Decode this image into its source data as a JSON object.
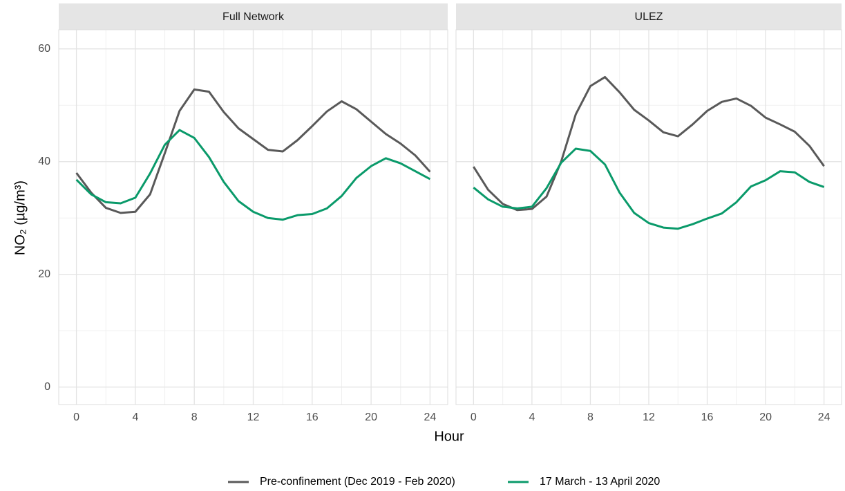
{
  "chart_data": [
    {
      "type": "line",
      "title": "Full Network",
      "x_label": "Hour",
      "y_label": "NO₂ (µg/m³)",
      "x": [
        0,
        1,
        2,
        3,
        4,
        5,
        6,
        7,
        8,
        9,
        10,
        11,
        12,
        13,
        14,
        15,
        16,
        17,
        18,
        19,
        20,
        21,
        22,
        23,
        24
      ],
      "series": [
        {
          "name": "Pre-confinement (Dec 2019 - Feb 2020)",
          "color": "#595959",
          "values": [
            38.0,
            34.5,
            31.8,
            30.9,
            31.1,
            34.2,
            41.5,
            49.0,
            52.8,
            52.4,
            48.8,
            45.9,
            44.0,
            42.1,
            41.8,
            43.8,
            46.3,
            48.9,
            50.7,
            49.3,
            47.1,
            44.9,
            43.2,
            41.1,
            38.2
          ]
        },
        {
          "name": "17 March - 13 April 2020",
          "color": "#0a9a6a",
          "values": [
            36.8,
            34.2,
            32.8,
            32.6,
            33.6,
            37.9,
            43.0,
            45.6,
            44.2,
            40.8,
            36.4,
            33.0,
            31.1,
            30.0,
            29.7,
            30.5,
            30.7,
            31.7,
            33.9,
            37.1,
            39.2,
            40.6,
            39.7,
            38.3,
            36.9
          ]
        }
      ],
      "xlim": [
        -1.2,
        25.2
      ],
      "ylim": [
        -3.1,
        63.4
      ],
      "xticks": [
        0,
        4,
        8,
        12,
        16,
        20,
        24
      ],
      "yticks": [
        0,
        20,
        40,
        60
      ],
      "x_minor_ticks": [
        2,
        6,
        10,
        14,
        18,
        22
      ],
      "y_minor_ticks": [
        10,
        30,
        50
      ],
      "grid": true
    },
    {
      "type": "line",
      "title": "ULEZ",
      "x": [
        0,
        1,
        2,
        3,
        4,
        5,
        6,
        7,
        8,
        9,
        10,
        11,
        12,
        13,
        14,
        15,
        16,
        17,
        18,
        19,
        20,
        21,
        22,
        23,
        24
      ],
      "series": [
        {
          "color": "#595959",
          "values": [
            39.1,
            35.0,
            32.5,
            31.4,
            31.6,
            33.8,
            40.0,
            48.4,
            53.4,
            55.0,
            52.3,
            49.2,
            47.3,
            45.2,
            44.5,
            46.6,
            49.0,
            50.6,
            51.2,
            49.9,
            47.8,
            46.6,
            45.3,
            42.8,
            39.2
          ]
        },
        {
          "color": "#0a9a6a",
          "values": [
            35.4,
            33.3,
            32.0,
            31.7,
            32.0,
            35.3,
            39.8,
            42.3,
            41.9,
            39.5,
            34.5,
            30.9,
            29.1,
            28.3,
            28.1,
            28.9,
            29.9,
            30.8,
            32.8,
            35.6,
            36.7,
            38.3,
            38.1,
            36.4,
            35.5
          ]
        }
      ],
      "xlim": [
        -1.2,
        25.2
      ],
      "ylim": [
        -3.1,
        63.4
      ],
      "xticks": [
        0,
        4,
        8,
        12,
        16,
        20,
        24
      ],
      "yticks": [
        0,
        20,
        40,
        60
      ],
      "x_minor_ticks": [
        2,
        6,
        10,
        14,
        18,
        22
      ],
      "y_minor_ticks": [
        10,
        30,
        50
      ],
      "grid": true
    }
  ]
}
